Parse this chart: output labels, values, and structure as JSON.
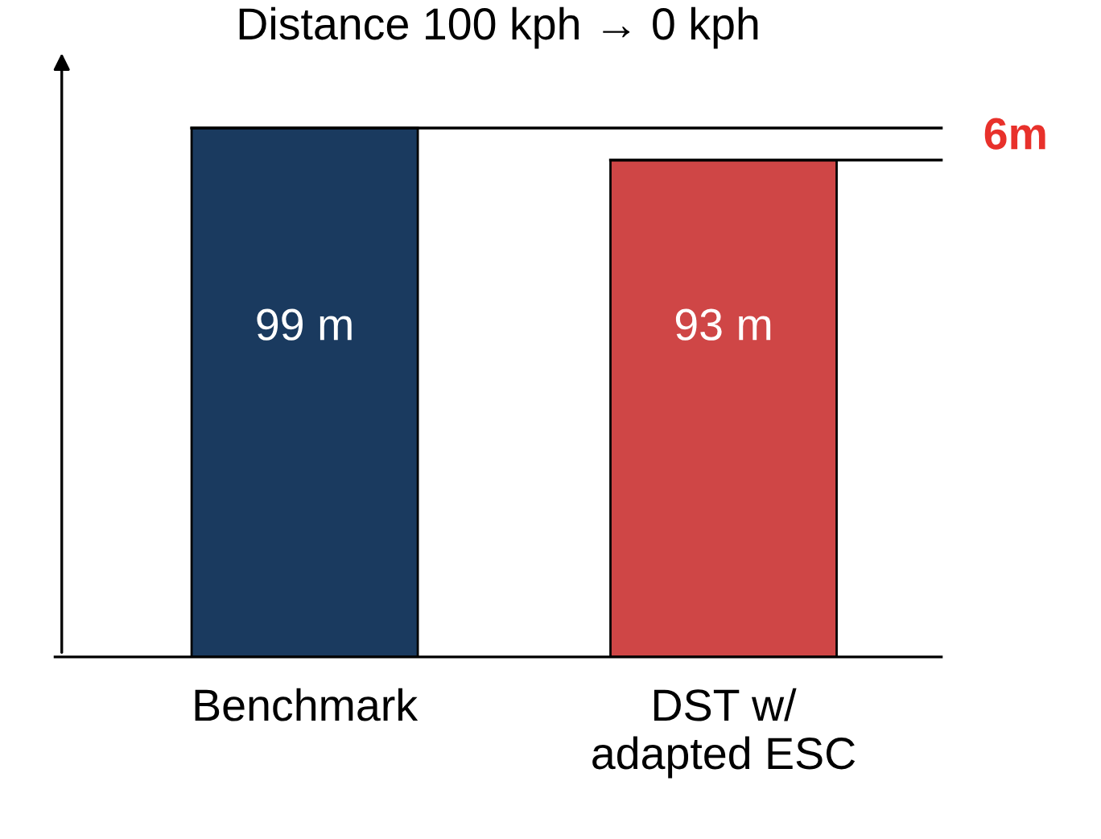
{
  "chart_data": {
    "type": "bar",
    "title": "Distance 100 kph → 0 kph",
    "categories": [
      "Benchmark",
      "DST w/\nadapted ESC"
    ],
    "values": [
      99,
      93
    ],
    "colors": [
      "#1a3a5f",
      "#cf4646"
    ],
    "value_labels": [
      "99 m",
      "93 m"
    ],
    "ref_lines": [
      {
        "axis": "y",
        "value": 99,
        "color": "#000000"
      },
      {
        "axis": "y",
        "value": 93,
        "label": "6m",
        "color": "#000000"
      }
    ]
  }
}
